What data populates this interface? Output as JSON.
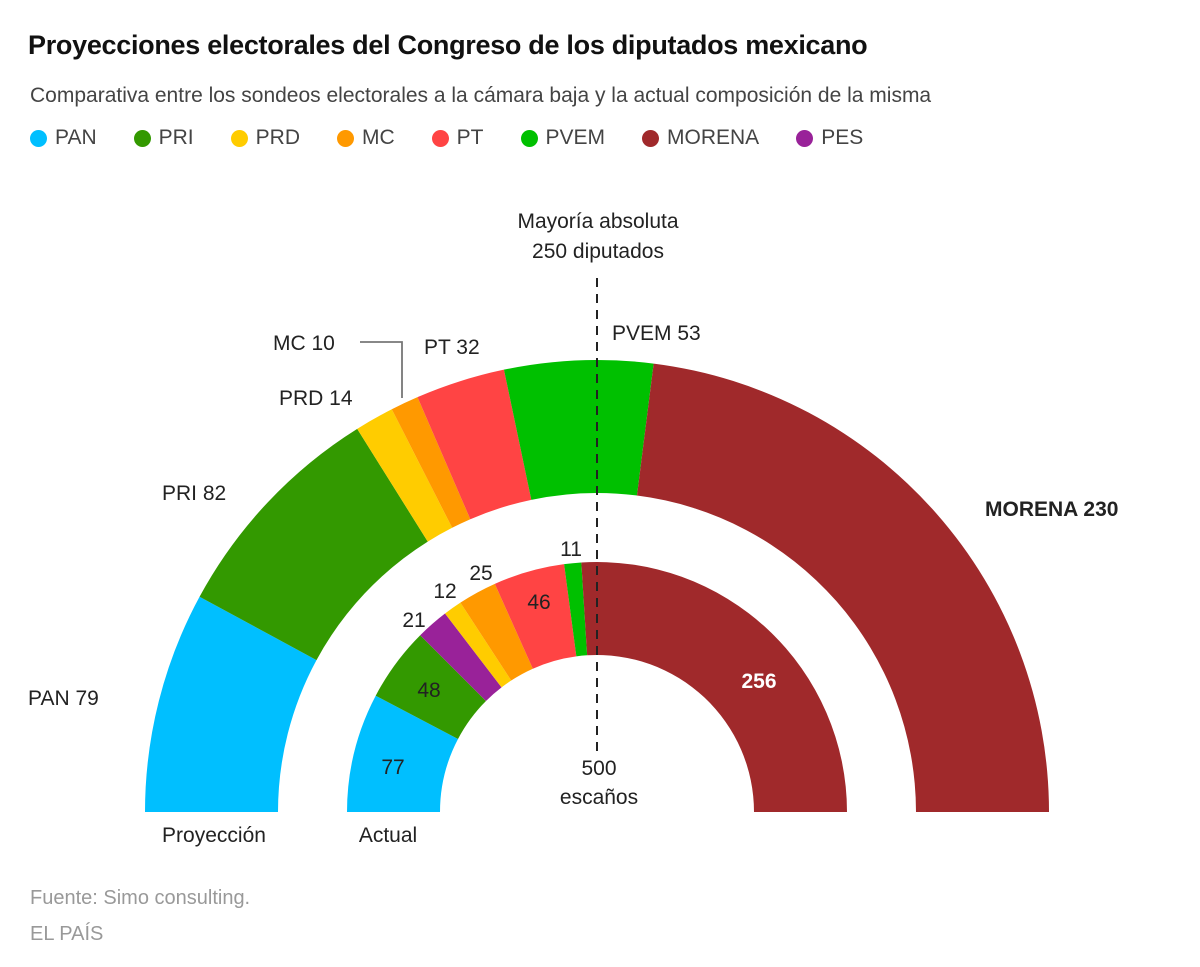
{
  "title": "Proyecciones electorales del Congreso de los diputados mexicano",
  "subtitle": "Comparativa entre los sondeos electorales a la cámara baja y la actual composición de la misma",
  "legend": [
    {
      "label": "PAN",
      "color": "#00BFFF"
    },
    {
      "label": "PRI",
      "color": "#339900"
    },
    {
      "label": "PRD",
      "color": "#FFCC00"
    },
    {
      "label": "MC",
      "color": "#FF9900"
    },
    {
      "label": "PT",
      "color": "#FF4444"
    },
    {
      "label": "PVEM",
      "color": "#00C000"
    },
    {
      "label": "MORENA",
      "color": "#A0292B"
    },
    {
      "label": "PES",
      "color": "#992299"
    }
  ],
  "annotations": {
    "majority_line1": "Mayoría absoluta",
    "majority_line2": "250 diputados",
    "total_line1": "500",
    "total_line2": "escaños",
    "outer_ring_label": "Proyección",
    "inner_ring_label": "Actual"
  },
  "footer": {
    "source": "Fuente: Simo consulting.",
    "brand": "EL PAÍS"
  },
  "chart_data": {
    "type": "pie",
    "subtype": "parliament-semicircle",
    "title": "Proyecciones electorales del Congreso de los diputados mexicano",
    "total_seats": 500,
    "majority": 250,
    "series": [
      {
        "name": "Proyección",
        "ring": "outer",
        "categories": [
          "PAN",
          "PRI",
          "PRD",
          "MC",
          "PT",
          "PVEM",
          "MORENA"
        ],
        "values": [
          79,
          82,
          14,
          10,
          32,
          53,
          230
        ],
        "labels": [
          "PAN 79",
          "PRI 82",
          "PRD 14",
          "MC 10",
          "PT 32",
          "PVEM 53",
          "MORENA 230"
        ]
      },
      {
        "name": "Actual",
        "ring": "inner",
        "categories": [
          "PAN",
          "PRI",
          "PES",
          "PRD",
          "MC",
          "PT",
          "PVEM",
          "MORENA"
        ],
        "values": [
          77,
          48,
          21,
          12,
          25,
          46,
          11,
          256
        ],
        "labels": [
          "77",
          "48",
          "21",
          "12",
          "25",
          "46",
          "11",
          "256"
        ]
      }
    ]
  }
}
